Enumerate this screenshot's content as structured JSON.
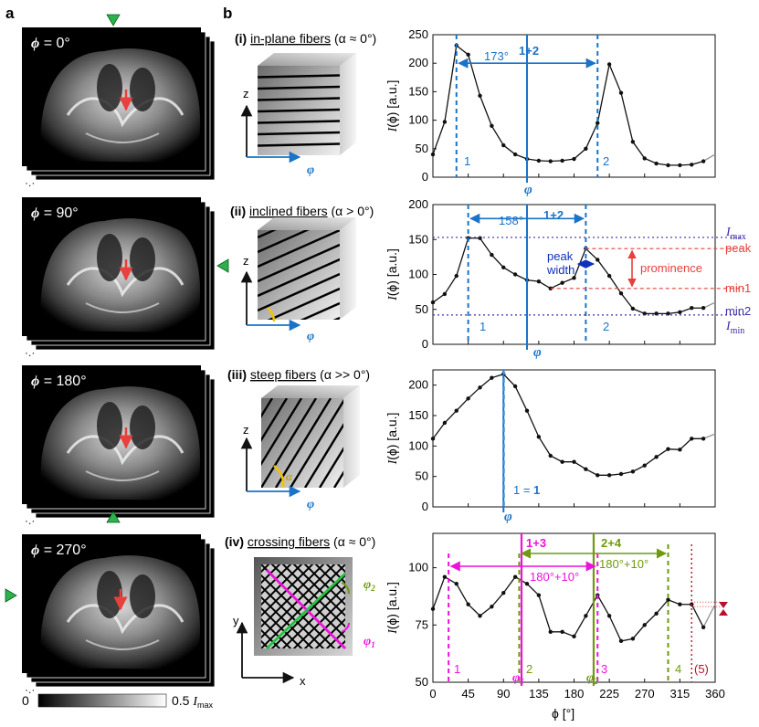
{
  "panel_a": {
    "label": "a",
    "stacks": [
      {
        "label": "ϕ = 0°",
        "marker_side": "top"
      },
      {
        "label": "ϕ = 90°",
        "marker_side": "right"
      },
      {
        "label": "ϕ = 180°",
        "marker_side": "bottom"
      },
      {
        "label": "ϕ = 270°",
        "marker_side": "left"
      }
    ],
    "colorbar": {
      "min": "0",
      "max": "0.5",
      "max_var": "I",
      "max_sub": "max"
    }
  },
  "panel_b": {
    "label": "b",
    "rows": [
      {
        "roman": "(i)",
        "title": "in-plane fibers",
        "cond": "(α ≈ 0°)",
        "axis_v": "z",
        "axis_h": "φ"
      },
      {
        "roman": "(ii)",
        "title": "inclined fibers",
        "cond": "(α > 0°)",
        "axis_v": "z",
        "axis_h": "φ"
      },
      {
        "roman": "(iii)",
        "title": "steep fibers",
        "cond": "(α >> 0°)",
        "axis_v": "z",
        "axis_h": "φ",
        "angle": "α"
      },
      {
        "roman": "(iv)",
        "title": "crossing fibers",
        "cond": "(α ≈ 0°)",
        "axis_v": "y",
        "axis_h": "x",
        "phi2": "φ",
        "phi2_sub": "2",
        "phi1": "φ",
        "phi1_sub": "1"
      }
    ]
  },
  "chart_data": [
    {
      "type": "line",
      "title": "",
      "ylabel": "I(ϕ) [a.u.]",
      "ylim": [
        0,
        250
      ],
      "yticks": [
        "0",
        "50",
        "100",
        "150",
        "200",
        "250"
      ],
      "x": [
        0,
        15,
        30,
        45,
        60,
        75,
        90,
        105,
        120,
        135,
        150,
        165,
        180,
        195,
        210,
        225,
        240,
        255,
        270,
        285,
        300,
        315,
        330,
        345
      ],
      "values": [
        40,
        97,
        231,
        215,
        143,
        90,
        56,
        40,
        32,
        29,
        28,
        29,
        32,
        50,
        95,
        198,
        148,
        62,
        33,
        24,
        21,
        21,
        22,
        28
      ],
      "extra_label": "173°",
      "center_label": "1+2",
      "phi_label": "φ",
      "peak_labels": [
        "1",
        "2"
      ]
    },
    {
      "type": "line",
      "title": "",
      "ylabel": "I(ϕ) [a.u.]",
      "ylim": [
        0,
        200
      ],
      "yticks": [
        "0",
        "50",
        "100",
        "150",
        "200"
      ],
      "x": [
        0,
        15,
        30,
        45,
        60,
        75,
        90,
        105,
        120,
        135,
        150,
        165,
        180,
        195,
        210,
        225,
        240,
        255,
        270,
        285,
        300,
        315,
        330,
        345
      ],
      "values": [
        60,
        72,
        98,
        152,
        152,
        128,
        110,
        100,
        92,
        90,
        80,
        88,
        95,
        137,
        121,
        98,
        73,
        51,
        44,
        44,
        44,
        46,
        52,
        52
      ],
      "extra_label": "158°",
      "center_label": "1+2",
      "phi_label": "φ",
      "peak_labels": [
        "1",
        "2"
      ],
      "annotations": {
        "imax": "I",
        "imax_sub": "max",
        "imin": "I",
        "imin_sub": "min",
        "peak": "peak",
        "min1": "min1",
        "min2": "min2",
        "prominence": "prominence",
        "peak_width_1": "peak",
        "peak_width_2": "width"
      }
    },
    {
      "type": "line",
      "title": "",
      "ylabel": "I(ϕ) [a.u.]",
      "ylim": [
        0,
        225
      ],
      "yticks": [
        "0",
        "50",
        "100",
        "150",
        "200"
      ],
      "x": [
        0,
        15,
        30,
        45,
        60,
        75,
        90,
        105,
        120,
        135,
        150,
        165,
        180,
        195,
        210,
        225,
        240,
        255,
        270,
        285,
        300,
        315,
        330,
        345
      ],
      "values": [
        112,
        138,
        158,
        178,
        196,
        212,
        218,
        198,
        158,
        115,
        84,
        74,
        74,
        62,
        52,
        52,
        54,
        58,
        68,
        82,
        95,
        94,
        112,
        112
      ],
      "center_label_prefix": "1 = ",
      "center_label_bold": "1",
      "phi_label": "φ"
    },
    {
      "type": "line",
      "title": "",
      "xlabel": "ϕ [°]",
      "ylabel": "I(ϕ) [a.u.]",
      "ylim": [
        50,
        115
      ],
      "xlim": [
        0,
        360
      ],
      "xticks": [
        "0",
        "45",
        "90",
        "135",
        "180",
        "225",
        "270",
        "315",
        "360"
      ],
      "yticks": [
        "50",
        "75",
        "100"
      ],
      "x": [
        0,
        15,
        30,
        45,
        60,
        75,
        90,
        105,
        120,
        135,
        150,
        165,
        180,
        195,
        210,
        225,
        240,
        255,
        270,
        285,
        300,
        315,
        330,
        345
      ],
      "values": [
        82,
        96,
        93,
        84,
        79,
        83,
        89,
        96,
        93,
        88,
        72,
        72,
        70,
        79,
        88,
        79,
        68,
        69,
        75,
        80,
        86,
        84,
        84,
        74
      ],
      "crossing_labels": {
        "l13": "1+3",
        "l24": "2+4",
        "d1": "180°+10°",
        "d2": "180°+10°",
        "phi1": "φ",
        "phi1_sub": "1",
        "phi2": "φ",
        "phi2_sub": "2",
        "peaks": [
          "1",
          "2",
          "3",
          "4",
          "(5)"
        ]
      }
    }
  ],
  "colors": {
    "blue": "#1a73c9",
    "magenta": "#ee11dd",
    "olive": "#6f9a10",
    "red": "#e8403c",
    "purple": "#3b2fa8",
    "darkred": "#b8102a"
  }
}
